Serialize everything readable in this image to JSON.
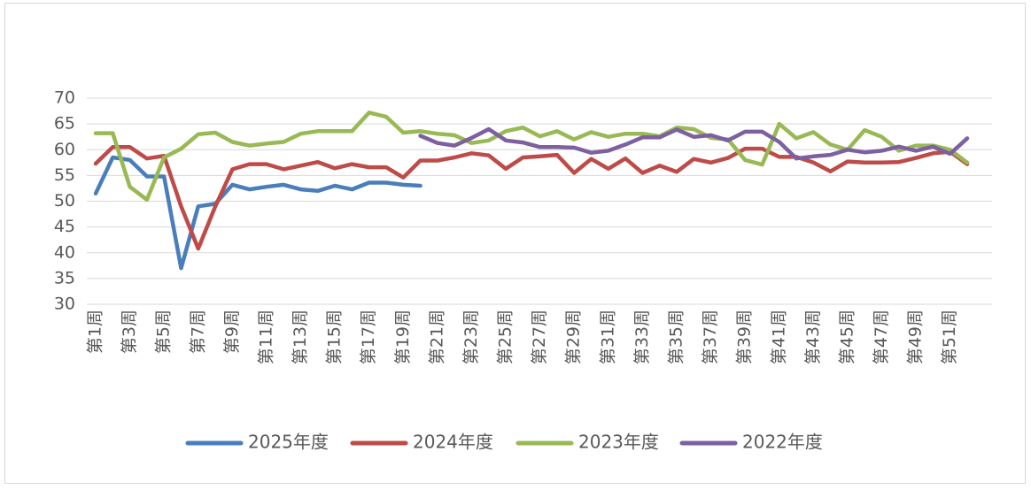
{
  "chart_data": {
    "type": "line",
    "categories": [
      "第1周",
      null,
      "第3周",
      null,
      "第5周",
      null,
      "第7周",
      null,
      "第9周",
      null,
      "第11周",
      null,
      "第13周",
      null,
      "第15周",
      null,
      "第17周",
      null,
      "第19周",
      null,
      "第21周",
      null,
      "第23周",
      null,
      "第25周",
      null,
      "第27周",
      null,
      "第29周",
      null,
      "第31周",
      null,
      "第33周",
      null,
      "第35周",
      null,
      "第37周",
      null,
      "第39周",
      null,
      "第41周",
      null,
      "第43周",
      null,
      "第45周",
      null,
      "第47周",
      null,
      "第49周",
      null,
      "第51周",
      null
    ],
    "ylim": [
      30,
      70
    ],
    "yticks": [
      30,
      35,
      40,
      45,
      50,
      55,
      60,
      65,
      70
    ],
    "grid": true,
    "legend": "bottom",
    "series": [
      {
        "name": "2025年度",
        "color": "#4a7ebb",
        "values": [
          51.5,
          58.5,
          58,
          54.8,
          54.8,
          37,
          49,
          49.5,
          53.2,
          52.3,
          52.8,
          53.2,
          52.3,
          52,
          53,
          52.3,
          53.6,
          53.6,
          53.2,
          53,
          null,
          null,
          null,
          null,
          null,
          null,
          null,
          null,
          null,
          null,
          null,
          null,
          null,
          null,
          null,
          null,
          null,
          null,
          null,
          null,
          null,
          null,
          null,
          null,
          null,
          null,
          null,
          null,
          null,
          null,
          null,
          null
        ]
      },
      {
        "name": "2024年度",
        "color": "#be4b48",
        "values": [
          57.3,
          60.5,
          60.5,
          58.3,
          58.8,
          49,
          40.8,
          49,
          56.2,
          57.2,
          57.2,
          56.2,
          56.9,
          57.6,
          56.4,
          57.2,
          56.6,
          56.6,
          54.6,
          57.9,
          57.9,
          58.5,
          59.3,
          58.9,
          56.3,
          58.5,
          58.7,
          59,
          55.5,
          58.2,
          56.3,
          58.3,
          55.5,
          56.9,
          55.7,
          58.2,
          57.5,
          58.4,
          60.2,
          60.2,
          58.6,
          58.6,
          57.5,
          55.8,
          57.7,
          57.5,
          57.5,
          57.6,
          58.4,
          59.3,
          59.6,
          57.2
        ]
      },
      {
        "name": "2023年度",
        "color": "#98b954",
        "values": [
          63.2,
          63.2,
          52.8,
          50.3,
          58.5,
          60.2,
          63,
          63.3,
          61.5,
          60.8,
          61.2,
          61.5,
          63.1,
          63.6,
          63.6,
          63.6,
          67.2,
          66.4,
          63.3,
          63.6,
          63.1,
          62.8,
          61.3,
          61.8,
          63.6,
          64.3,
          62.6,
          63.6,
          62,
          63.4,
          62.5,
          63.1,
          63.1,
          62.6,
          64.3,
          64,
          62.3,
          62,
          58,
          57.1,
          65,
          62.2,
          63.4,
          61,
          60,
          63.8,
          62.5,
          59.8,
          60.8,
          60.8,
          60,
          57.5
        ]
      },
      {
        "name": "2022年度",
        "color": "#7d60a0",
        "values": [
          null,
          null,
          null,
          null,
          null,
          null,
          null,
          null,
          null,
          null,
          null,
          null,
          null,
          null,
          null,
          null,
          null,
          null,
          null,
          62.7,
          61.3,
          60.8,
          62.3,
          64,
          61.8,
          61.4,
          60.5,
          60.5,
          60.4,
          59.4,
          59.8,
          61,
          62.4,
          62.4,
          63.9,
          62.5,
          62.8,
          61.8,
          63.5,
          63.5,
          61.5,
          58.3,
          58.7,
          59,
          60,
          59.5,
          59.8,
          60.6,
          59.8,
          60.6,
          59.2,
          62.2
        ]
      }
    ]
  }
}
